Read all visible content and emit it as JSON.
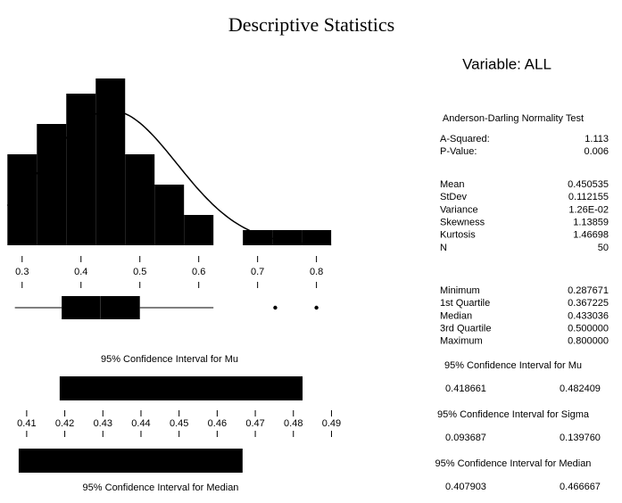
{
  "title": "Descriptive Statistics",
  "chart_data": [
    {
      "type": "histogram",
      "bins": [
        0.275,
        0.325,
        0.375,
        0.425,
        0.475,
        0.525,
        0.575,
        0.625,
        0.675,
        0.725,
        0.775,
        0.825
      ],
      "values": [
        6,
        8,
        10,
        11,
        6,
        4,
        2,
        0,
        1,
        1,
        1
      ],
      "color": "#000000",
      "ylim": [
        0,
        11
      ],
      "xlim": [
        0.27,
        0.84
      ],
      "xticks": [
        0.3,
        0.4,
        0.5,
        0.6,
        0.7,
        0.8
      ],
      "curve": "normal"
    },
    {
      "type": "boxplot",
      "whisker_high": 0.625,
      "outliers": [
        0.73,
        0.8
      ],
      "color": "#000000"
    },
    {
      "type": "interval",
      "title": "95% Confidence Interval for Mu",
      "values": [
        0.418661,
        0.482409
      ],
      "color": "#000000",
      "xlim": [
        0.403,
        0.492
      ],
      "xticks": [
        0.41,
        0.42,
        0.43,
        0.44,
        0.45,
        0.46,
        0.47,
        0.48,
        0.49
      ]
    },
    {
      "type": "interval",
      "title": "95% Confidence Interval for Median",
      "values": [
        0.407903,
        0.466667
      ],
      "color": "#000000"
    }
  ],
  "stats": {
    "variable": "Variable: ALL",
    "test_title": "Anderson-Darling Normality Test",
    "test": [
      [
        "A-Squared:",
        "1.113"
      ],
      [
        "P-Value:",
        "0.006"
      ]
    ],
    "moments": [
      [
        "Mean",
        "0.450535"
      ],
      [
        "StDev",
        "0.112155"
      ],
      [
        "Variance",
        "1.26E-02"
      ],
      [
        "Skewness",
        "1.13859"
      ],
      [
        "Kurtosis",
        "1.46698"
      ],
      [
        "N",
        "50"
      ]
    ],
    "quantiles": [
      [
        "Minimum",
        "0.287671"
      ],
      [
        "1st Quartile",
        "0.367225"
      ],
      [
        "Median",
        "0.433036"
      ],
      [
        "3rd Quartile",
        "0.500000"
      ],
      [
        "Maximum",
        "0.800000"
      ]
    ],
    "sigma_interval": {
      "title": "95% Confidence Interval for Sigma",
      "values": [
        "0.093687",
        "0.139760"
      ]
    }
  }
}
